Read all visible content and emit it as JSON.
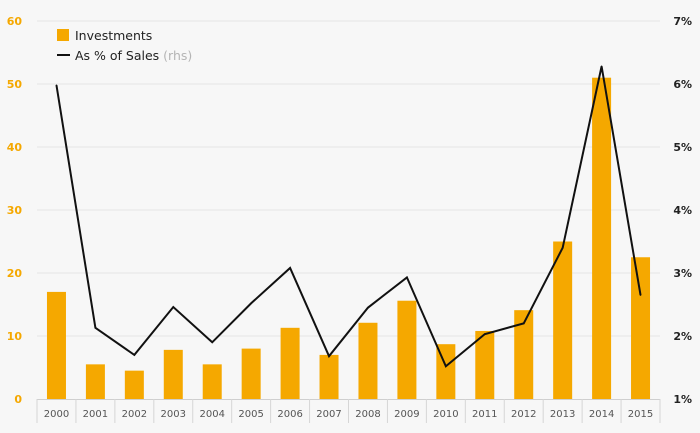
{
  "chart_data": {
    "type": "bar+line",
    "categories": [
      "2000",
      "2001",
      "2002",
      "2003",
      "2004",
      "2005",
      "2006",
      "2007",
      "2008",
      "2009",
      "2010",
      "2011",
      "2012",
      "2013",
      "2014",
      "2015"
    ],
    "series": [
      {
        "name": "Investments",
        "type": "bar",
        "axis": "left",
        "values": [
          17,
          5.5,
          4.5,
          7.8,
          5.5,
          8,
          11.3,
          7,
          12.1,
          15.6,
          8.7,
          10.8,
          14.1,
          25,
          51,
          22.5
        ]
      },
      {
        "name": "As % of Sales",
        "name_suffix": "(rhs)",
        "type": "line",
        "axis": "right",
        "values": [
          5.98,
          2.13,
          1.7,
          2.46,
          1.9,
          2.52,
          3.08,
          1.68,
          2.45,
          2.93,
          1.52,
          2.03,
          2.2,
          3.4,
          6.28,
          2.65
        ]
      }
    ],
    "y_left": {
      "min": 0,
      "max": 60,
      "ticks": [
        0,
        10,
        20,
        30,
        40,
        50,
        60
      ],
      "tick_labels": [
        "0",
        "10",
        "20",
        "30",
        "40",
        "50",
        "60"
      ]
    },
    "y_right": {
      "min": 1,
      "max": 7,
      "ticks": [
        1,
        2,
        3,
        4,
        5,
        6,
        7
      ],
      "tick_labels": [
        "1%",
        "2%",
        "3%",
        "4%",
        "5%",
        "6%",
        "7%"
      ]
    },
    "grid": true,
    "legend_position": "top-left",
    "colors": {
      "bar": "#f5a800",
      "line": "#111111",
      "grid": "#e6e6e6",
      "left_tick": "#f5a800",
      "right_tick": "#222222"
    }
  }
}
